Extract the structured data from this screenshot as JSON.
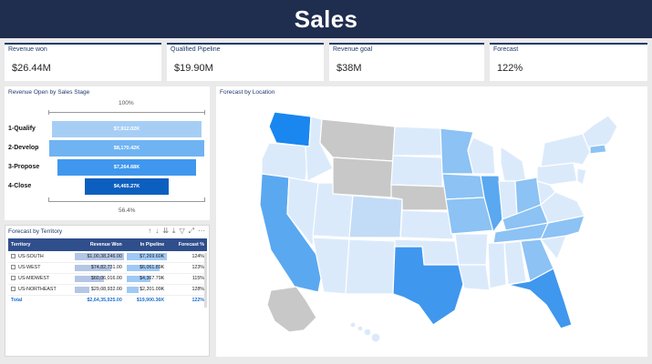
{
  "header": {
    "title": "Sales"
  },
  "kpis": [
    {
      "label": "Revenue won",
      "value": "$26.44M"
    },
    {
      "label": "Qualified Pipeline",
      "value": "$19.90M"
    },
    {
      "label": "Revenue goal",
      "value": "$38M"
    },
    {
      "label": "Forecast",
      "value": "122%"
    }
  ],
  "funnel": {
    "title": "Revenue Open by Sales Stage",
    "top_rate": "100%",
    "bottom_rate": "56.4%",
    "stages": [
      {
        "label": "1-Qualify",
        "value": "$7,912.02K",
        "amount": 7912.02,
        "color": "#a6cef5"
      },
      {
        "label": "2-Develop",
        "value": "$8,170.42K",
        "amount": 8170.42,
        "color": "#6fb3f2"
      },
      {
        "label": "3-Propose",
        "value": "$7,264.68K",
        "amount": 7264.68,
        "color": "#3f97ee"
      },
      {
        "label": "4-Close",
        "value": "$4,465.27K",
        "amount": 4465.27,
        "color": "#0d5fbf"
      }
    ]
  },
  "territory": {
    "title": "Forecast by Territory",
    "columns": [
      "Territory",
      "Revenue Won",
      "In Pipeline",
      "Forecast %"
    ],
    "rows": [
      {
        "name": "US-SOUTH",
        "won": "$1,00,38,246.00",
        "pipeline": "$7,269.60K",
        "forecast": "124%",
        "won_pct": 1.0,
        "pipe_pct": 1.0
      },
      {
        "name": "US-WEST",
        "won": "$74,82,731.00",
        "pipeline": "$6,061.89K",
        "forecast": "123%",
        "won_pct": 0.75,
        "pipe_pct": 0.83
      },
      {
        "name": "US-MIDWEST",
        "won": "$60,06,016.00",
        "pipeline": "$4,367.79K",
        "forecast": "115%",
        "won_pct": 0.6,
        "pipe_pct": 0.6
      },
      {
        "name": "US-NORTHEAST",
        "won": "$29,08,932.00",
        "pipeline": "$2,201.09K",
        "forecast": "128%",
        "won_pct": 0.29,
        "pipe_pct": 0.3
      }
    ],
    "total": {
      "name": "Total",
      "won": "$2,64,35,925.00",
      "pipeline": "$19,900.36K",
      "forecast": "122%"
    },
    "toolbar_icons": [
      "up-arrow-icon",
      "down-arrow-icon",
      "double-down-icon",
      "expand-icon",
      "filter-icon",
      "focus-icon",
      "more-icon"
    ]
  },
  "map": {
    "title": "Forecast by Location"
  },
  "colors": {
    "header": "#1f2d4e",
    "accent": "#1f3a6b",
    "map_light": "#dbeafb",
    "map_mid": "#8cc2f4",
    "map_dark": "#1a86ef",
    "map_gray": "#c8c8c8"
  }
}
